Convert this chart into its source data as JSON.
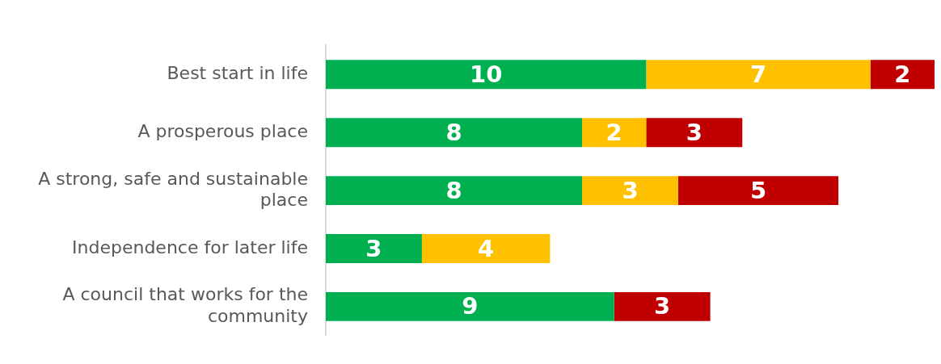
{
  "chart_data": {
    "type": "bar",
    "orientation": "horizontal",
    "stacked": true,
    "data_labels": true,
    "legend": false,
    "tick_labels": "y",
    "xlim": [
      0,
      19
    ],
    "categories": [
      "Best start in life",
      "A prosperous place",
      "A strong, safe and sustainable place",
      "Independence for later life",
      "A council that works for the community"
    ],
    "series": [
      {
        "color": "#00b050",
        "values": [
          10,
          8,
          8,
          3,
          9
        ]
      },
      {
        "color": "#ffc000",
        "values": [
          7,
          2,
          3,
          4,
          null
        ]
      },
      {
        "color": "#c00000",
        "values": [
          2,
          3,
          5,
          null,
          3
        ]
      }
    ]
  }
}
